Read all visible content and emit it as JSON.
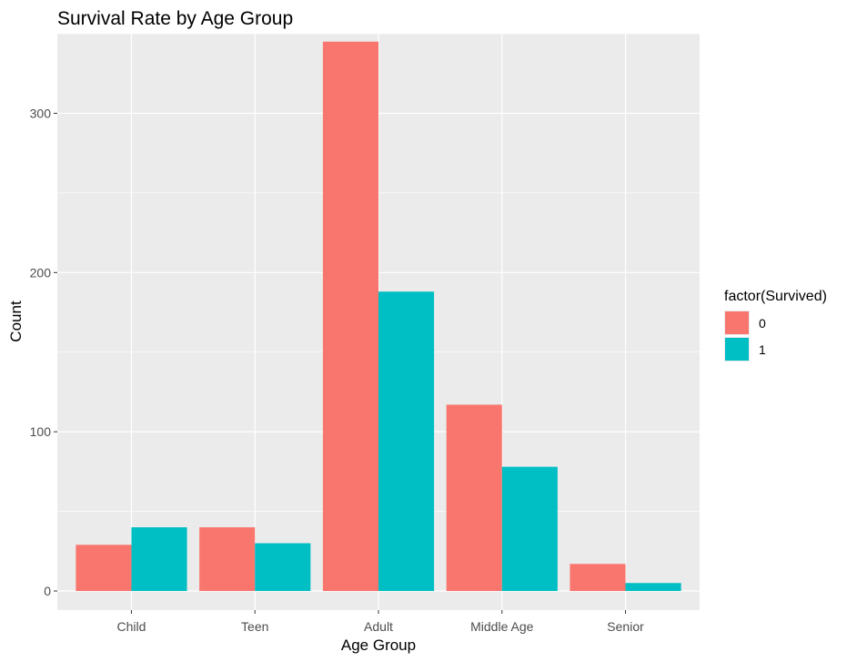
{
  "chart_data": {
    "type": "bar",
    "title": "Survival Rate by Age Group",
    "xlabel": "Age Group",
    "ylabel": "Count",
    "categories": [
      "Child",
      "Teen",
      "Adult",
      "Middle Age",
      "Senior"
    ],
    "series": [
      {
        "name": "0",
        "values": [
          29,
          40,
          345,
          117,
          17
        ],
        "color": "#F8766D"
      },
      {
        "name": "1",
        "values": [
          40,
          30,
          188,
          78,
          5
        ],
        "color": "#00BFC4"
      }
    ],
    "ylim": [
      -12,
      350
    ],
    "yticks": [
      0,
      100,
      200,
      300
    ],
    "grid": true,
    "legend": {
      "title": "factor(Survived)",
      "placement": "right"
    },
    "panel_background": "#EBEBEB",
    "grid_color": "#FFFFFF"
  }
}
